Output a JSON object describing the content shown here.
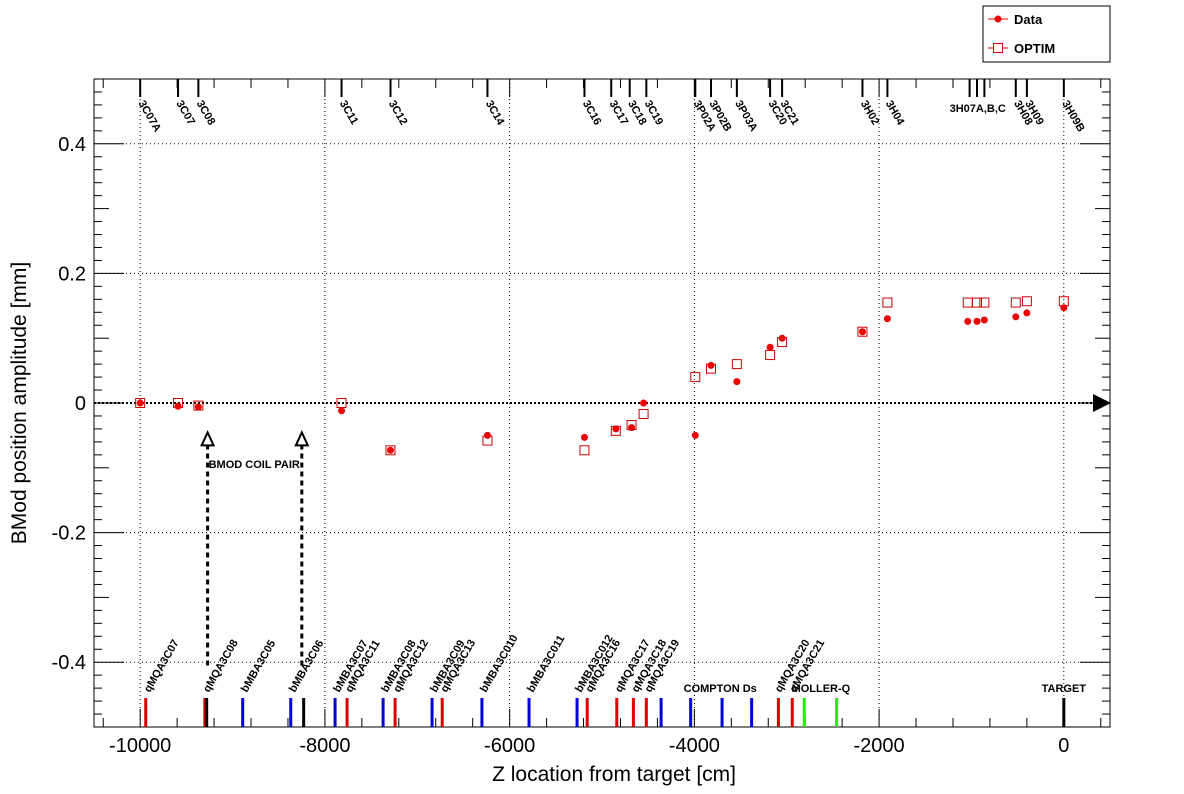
{
  "chart_data": {
    "type": "scatter",
    "xlabel": "Z location from target [cm]",
    "ylabel": "BMod position amplitude [mm]",
    "xlim": [
      -10500,
      500
    ],
    "ylim": [
      -0.5,
      0.5
    ],
    "x_ticks": [
      -10000,
      -8000,
      -6000,
      -4000,
      -2000,
      0
    ],
    "y_ticks": [
      -0.4,
      -0.2,
      0,
      0.2,
      0.4
    ],
    "grid": true,
    "legend_position": "top-right",
    "legend": [
      {
        "name": "Data",
        "marker": "filled-circle",
        "color": "#ee0000"
      },
      {
        "name": "OPTIM",
        "marker": "open-square",
        "color": "#cc0000"
      }
    ],
    "series": [
      {
        "name": "Data",
        "points": [
          [
            -10000,
            0.0
          ],
          [
            -9590,
            -0.005
          ],
          [
            -9370,
            -0.006
          ],
          [
            -7820,
            -0.012
          ],
          [
            -7290,
            -0.073
          ],
          [
            -6240,
            -0.05
          ],
          [
            -5190,
            -0.053
          ],
          [
            -4850,
            -0.04
          ],
          [
            -4680,
            -0.038
          ],
          [
            -4550,
            0.0
          ],
          [
            -3990,
            -0.05
          ],
          [
            -3820,
            0.058
          ],
          [
            -3540,
            0.033
          ],
          [
            -3180,
            0.086
          ],
          [
            -3050,
            0.1
          ],
          [
            -2180,
            0.11
          ],
          [
            -1910,
            0.13
          ],
          [
            -1040,
            0.126
          ],
          [
            -940,
            0.126
          ],
          [
            -860,
            0.128
          ],
          [
            -520,
            0.133
          ],
          [
            -400,
            0.139
          ],
          [
            0,
            0.147
          ]
        ]
      },
      {
        "name": "OPTIM",
        "points": [
          [
            -10000,
            0.0
          ],
          [
            -9590,
            0.0
          ],
          [
            -9370,
            -0.004
          ],
          [
            -7820,
            0.0
          ],
          [
            -7290,
            -0.073
          ],
          [
            -6240,
            -0.058
          ],
          [
            -5190,
            -0.073
          ],
          [
            -4850,
            -0.043
          ],
          [
            -4680,
            -0.034
          ],
          [
            -4550,
            -0.017
          ],
          [
            -3990,
            0.04
          ],
          [
            -3820,
            0.053
          ],
          [
            -3540,
            0.06
          ],
          [
            -3180,
            0.074
          ],
          [
            -3050,
            0.094
          ],
          [
            -2180,
            0.11
          ],
          [
            -1910,
            0.155
          ],
          [
            -1040,
            0.155
          ],
          [
            -940,
            0.155
          ],
          [
            -860,
            0.155
          ],
          [
            -520,
            0.155
          ],
          [
            -400,
            0.157
          ],
          [
            0,
            0.157
          ]
        ]
      }
    ],
    "bpm_markers": [
      {
        "label": "3C07A",
        "z": -10000
      },
      {
        "label": "3C07",
        "z": -9590
      },
      {
        "label": "3C08",
        "z": -9370
      },
      {
        "label": "3C11",
        "z": -7820
      },
      {
        "label": "3C12",
        "z": -7290
      },
      {
        "label": "3C14",
        "z": -6240
      },
      {
        "label": "3C16",
        "z": -5190
      },
      {
        "label": "3C17",
        "z": -4900
      },
      {
        "label": "3C18",
        "z": -4700
      },
      {
        "label": "3C19",
        "z": -4520
      },
      {
        "label": "3P02A",
        "z": -3990
      },
      {
        "label": "3P02B",
        "z": -3820
      },
      {
        "label": "3P03A",
        "z": -3540
      },
      {
        "label": "3C20",
        "z": -3180
      },
      {
        "label": "3C21",
        "z": -3050
      },
      {
        "label": "3H02",
        "z": -2180
      },
      {
        "label": "3H04",
        "z": -1910
      },
      {
        "label": "3H07A,B,C",
        "z": -1020
      },
      {
        "label": "3H08",
        "z": -520
      },
      {
        "label": "3H09",
        "z": -400
      },
      {
        "label": "3H09B",
        "z": 0
      }
    ],
    "extra_bpm_ticks": [
      -940,
      -860
    ],
    "magnets": [
      {
        "label": "qMQA3C07",
        "z": -9940,
        "color": "#dd0000"
      },
      {
        "label": "qMQA3C08",
        "z": -9300,
        "color": "#dd0000"
      },
      {
        "label": "bMBA3C05",
        "z": -8890,
        "color": "#0000dd"
      },
      {
        "label": "bMBA3C06",
        "z": -8370,
        "color": "#0000dd"
      },
      {
        "label": "bMBA3C07",
        "z": -7890,
        "color": "#0000dd"
      },
      {
        "label": "qMQA3C11",
        "z": -7760,
        "color": "#dd0000"
      },
      {
        "label": "bMBA3C08",
        "z": -7370,
        "color": "#0000dd"
      },
      {
        "label": "qMQA3C12",
        "z": -7240,
        "color": "#dd0000"
      },
      {
        "label": "bMBA3C09",
        "z": -6840,
        "color": "#0000dd"
      },
      {
        "label": "qMQA3C13",
        "z": -6730,
        "color": "#dd0000"
      },
      {
        "label": "bMBA3C010",
        "z": -6300,
        "color": "#0000dd"
      },
      {
        "label": "bMBA3C011",
        "z": -5790,
        "color": "#0000dd"
      },
      {
        "label": "bMBA3C012",
        "z": -5270,
        "color": "#0000dd"
      },
      {
        "label": "qMQA3C16",
        "z": -5160,
        "color": "#dd0000"
      },
      {
        "label": "qMQA3C17",
        "z": -4840,
        "color": "#dd0000"
      },
      {
        "label": "qMQA3C18",
        "z": -4660,
        "color": "#dd0000"
      },
      {
        "label": "qMQA3C19",
        "z": -4520,
        "color": "#dd0000"
      }
    ],
    "magnet_unlabeled": [
      {
        "z": -9280,
        "color": "#000000"
      },
      {
        "z": -8230,
        "color": "#000000"
      },
      {
        "z": -4360,
        "color": "#0000dd"
      },
      {
        "z": -4040,
        "color": "#0000dd"
      },
      {
        "z": -3700,
        "color": "#0000dd"
      },
      {
        "z": -3380,
        "color": "#0000dd"
      },
      {
        "z": -3090,
        "color": "#dd0000"
      },
      {
        "z": -2940,
        "color": "#dd0000"
      },
      {
        "z": -2810,
        "color": "#22ee00"
      },
      {
        "z": -2460,
        "color": "#22ee00"
      },
      {
        "z": 0,
        "color": "#000000"
      }
    ],
    "magnet_group_labels": [
      {
        "label": "qMQA3C20",
        "z": -3110
      },
      {
        "label": "qMQA3C21",
        "z": -2950
      },
      {
        "label": "COMPTON Ds",
        "z": -3720
      },
      {
        "label": "MOLLER-Q",
        "z": -2630
      },
      {
        "label": "TARGET",
        "z": 0
      }
    ],
    "coil_pair": {
      "label": "BMOD COIL PAIR",
      "z": [
        -9270,
        -8250
      ],
      "y_top": -0.05,
      "y_bottom": -0.405
    }
  }
}
